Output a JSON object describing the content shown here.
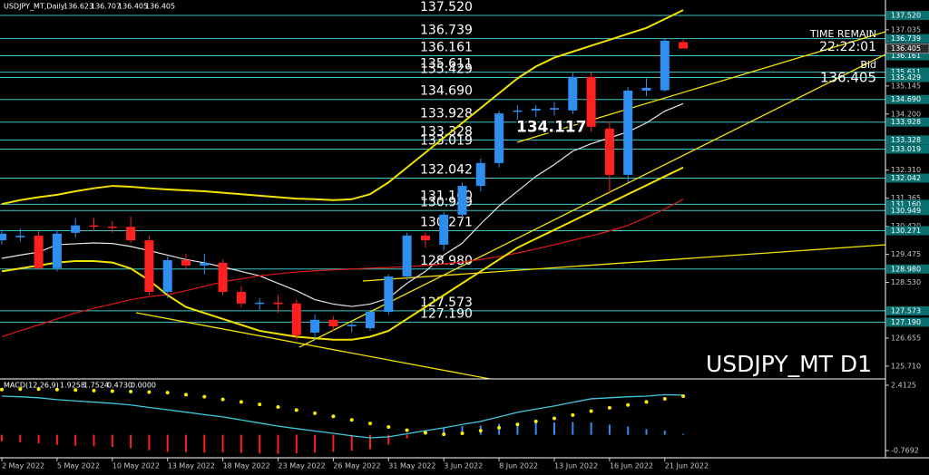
{
  "chart_data": [
    {
      "type": "candlestick",
      "title": "USDJPY_MT,Daily",
      "watermark": "USDJPY_MT D1",
      "categories": [
        "2 May 2022",
        null,
        null,
        "5 May 2022",
        null,
        null,
        "10 May 2022",
        null,
        null,
        "13 May 2022",
        null,
        null,
        "18 May 2022",
        null,
        null,
        "23 May 2022",
        null,
        null,
        "26 May 2022",
        null,
        null,
        "31 May 2022",
        null,
        null,
        "3 Jun 2022",
        null,
        null,
        "8 Jun 2022",
        null,
        null,
        "13 Jun 2022",
        null,
        null,
        "16 Jun 2022",
        null,
        null,
        "21 Jun 2022",
        null
      ],
      "open": [
        129.95,
        130.05,
        130.1,
        129.01,
        130.2,
        130.45,
        130.41,
        130.4,
        129.95,
        128.21,
        129.28,
        129.1,
        129.19,
        128.21,
        127.82,
        127.85,
        127.82,
        126.84,
        127.27,
        127.05,
        126.99,
        127.54,
        128.73,
        130.11,
        129.8,
        130.81,
        131.78,
        132.55,
        134.3,
        134.32,
        134.35,
        134.32,
        135.45,
        133.71,
        132.15,
        134.99,
        135.0,
        136.623
      ],
      "high": [
        130.3,
        130.35,
        130.25,
        130.3,
        130.7,
        130.7,
        130.6,
        130.75,
        130.1,
        129.4,
        129.5,
        129.5,
        129.3,
        128.4,
        128.0,
        128.1,
        127.95,
        127.45,
        127.4,
        127.2,
        127.6,
        128.8,
        130.2,
        130.2,
        130.9,
        131.9,
        132.7,
        134.3,
        134.5,
        134.5,
        134.6,
        135.58,
        135.6,
        133.95,
        135.1,
        135.4,
        136.74,
        136.707
      ],
      "low": [
        129.8,
        129.9,
        128.95,
        128.9,
        130.05,
        130.25,
        130.2,
        129.85,
        128.1,
        128.0,
        128.95,
        128.8,
        128.1,
        127.7,
        127.6,
        127.5,
        126.6,
        126.6,
        126.9,
        126.85,
        126.9,
        127.45,
        128.6,
        129.7,
        129.6,
        130.7,
        131.6,
        132.4,
        133.9,
        134.1,
        134.15,
        134.2,
        133.6,
        131.5,
        131.9,
        134.8,
        134.95,
        136.405
      ],
      "close": [
        130.17,
        130.1,
        129.01,
        130.17,
        130.45,
        130.41,
        130.38,
        129.95,
        128.21,
        129.28,
        129.1,
        129.19,
        128.21,
        127.82,
        127.85,
        127.8,
        126.75,
        127.27,
        127.05,
        127.1,
        127.54,
        128.73,
        130.11,
        129.95,
        130.81,
        131.78,
        132.55,
        134.22,
        134.32,
        134.38,
        134.4,
        135.45,
        133.77,
        132.15,
        134.99,
        135.08,
        136.67,
        136.405
      ],
      "up_color": "#2f8ff0",
      "down_color": "#ff2020",
      "ylim": [
        125.28,
        138.04
      ],
      "yticks": [
        137.035,
        135.145,
        {
          "value": 134.2,
          "label": "134.200"
        },
        {
          "value": 132.31,
          "label": "132.310"
        },
        131.365,
        {
          "value": 130.42,
          "label": "130.420"
        },
        129.475,
        {
          "value": 128.53,
          "label": "128.530"
        },
        126.655,
        {
          "value": 125.71,
          "label": "125.710"
        }
      ],
      "level_color": "#3fc6c6",
      "levels": [
        {
          "value": 137.52,
          "label": "137.520"
        },
        136.739,
        136.161,
        135.611,
        135.429,
        {
          "value": 134.69,
          "label": "134.690"
        },
        133.928,
        133.328,
        133.019,
        132.042,
        {
          "value": 131.16,
          "label": "131.160"
        },
        130.949,
        130.271,
        {
          "value": 128.98,
          "label": "128.980"
        },
        127.573,
        {
          "value": 127.19,
          "label": "127.190"
        }
      ],
      "annotation": 134.117,
      "time_remain_label": "TIME REMAIN",
      "time_remain": "22:22:01",
      "bid_label": "Bid",
      "bid": 136.405,
      "overlays": [
        {
          "color": "#e6e6e6",
          "values": [
            129.34,
            129.45,
            129.55,
            129.8,
            129.83,
            129.86,
            129.84,
            129.74,
            129.6,
            129.45,
            129.3,
            129.19,
            129.05,
            128.9,
            128.75,
            128.5,
            128.25,
            127.95,
            127.8,
            127.72,
            127.8,
            128.0,
            128.5,
            128.9,
            129.45,
            129.85,
            130.5,
            131.1,
            131.6,
            132.1,
            132.5,
            132.95,
            133.2,
            133.4,
            133.6,
            133.9,
            134.3,
            134.55
          ]
        },
        {
          "color": "#e01818",
          "values": [
            126.7,
            126.9,
            127.1,
            127.3,
            127.5,
            127.66,
            127.8,
            127.95,
            128.05,
            128.12,
            128.25,
            128.4,
            128.55,
            128.65,
            128.75,
            128.82,
            128.88,
            128.92,
            128.95,
            128.98,
            129.01,
            129.03,
            129.06,
            129.1,
            129.15,
            129.22,
            129.3,
            129.4,
            129.52,
            129.65,
            129.8,
            129.95,
            130.1,
            130.26,
            130.45,
            130.72,
            131.0,
            131.33
          ]
        },
        {
          "color": "#f2e200",
          "values": [
            131.17,
            131.3,
            131.4,
            131.48,
            131.6,
            131.7,
            131.78,
            131.75,
            131.7,
            131.66,
            131.63,
            131.6,
            131.55,
            131.5,
            131.45,
            131.4,
            131.35,
            131.33,
            131.3,
            131.33,
            131.5,
            131.9,
            132.4,
            132.9,
            133.4,
            133.9,
            134.4,
            134.9,
            135.4,
            135.8,
            136.1,
            136.3,
            136.5,
            136.7,
            136.9,
            137.1,
            137.4,
            137.7
          ]
        },
        {
          "color": "#f2e200",
          "values": [
            128.9,
            129.0,
            129.1,
            129.2,
            129.25,
            129.25,
            129.2,
            129.0,
            128.6,
            128.1,
            127.7,
            127.5,
            127.3,
            127.1,
            126.9,
            126.8,
            126.7,
            126.65,
            126.6,
            126.6,
            126.7,
            126.9,
            127.3,
            127.7,
            128.1,
            128.5,
            128.9,
            129.3,
            129.7,
            130.0,
            130.3,
            130.6,
            130.9,
            131.2,
            131.5,
            131.8,
            132.1,
            132.4
          ]
        }
      ]
    },
    {
      "type": "macd",
      "title": "MACD(12,26,9)",
      "readout": [
        1.9258,
        1.7524,
        {
          "value": 0.473,
          "label": "0.4730"
        },
        {
          "value": 0,
          "label": "0.0000"
        }
      ],
      "ylim": [
        -1.12,
        2.63
      ],
      "yticks": [
        2.4125,
        -0.7692
      ],
      "up_color": "#2f8ff0",
      "down_color": "#ff2020",
      "series": [
        {
          "color": "#2f8ff0",
          "values": [
            -0.32,
            -0.37,
            -0.42,
            -0.49,
            -0.53,
            -0.56,
            -0.59,
            -0.65,
            -0.75,
            -0.83,
            -0.85,
            -0.87,
            -0.85,
            -0.88,
            -0.91,
            -0.93,
            -0.9,
            -0.87,
            -0.83,
            -0.77,
            -0.7,
            -0.48,
            -0.17,
            0.1,
            0.32,
            0.43,
            0.45,
            0.53,
            0.59,
            0.6,
            0.6,
            0.62,
            0.6,
            0.49,
            0.4,
            0.28,
            0.2,
            0.05
          ]
        },
        {
          "color": "#3fc8e0",
          "values": [
            1.88,
            1.85,
            1.8,
            1.71,
            1.65,
            1.59,
            1.53,
            1.45,
            1.33,
            1.22,
            1.1,
            0.98,
            0.87,
            0.72,
            0.57,
            0.42,
            0.3,
            0.18,
            0.07,
            -0.05,
            -0.15,
            -0.1,
            0.05,
            0.2,
            0.34,
            0.5,
            0.65,
            0.87,
            1.09,
            1.25,
            1.4,
            1.58,
            1.75,
            1.8,
            1.85,
            1.88,
            1.95,
            1.93
          ]
        },
        {
          "color": "#ffee00",
          "values": [
            2.2,
            2.22,
            2.22,
            2.2,
            2.18,
            2.15,
            2.12,
            2.1,
            2.08,
            2.05,
            1.95,
            1.85,
            1.72,
            1.6,
            1.48,
            1.35,
            1.2,
            1.05,
            0.9,
            0.72,
            0.55,
            0.38,
            0.22,
            0.1,
            0.02,
            0.07,
            0.2,
            0.34,
            0.5,
            0.65,
            0.8,
            0.96,
            1.15,
            1.31,
            1.45,
            1.6,
            1.75,
            1.88
          ]
        }
      ]
    }
  ]
}
